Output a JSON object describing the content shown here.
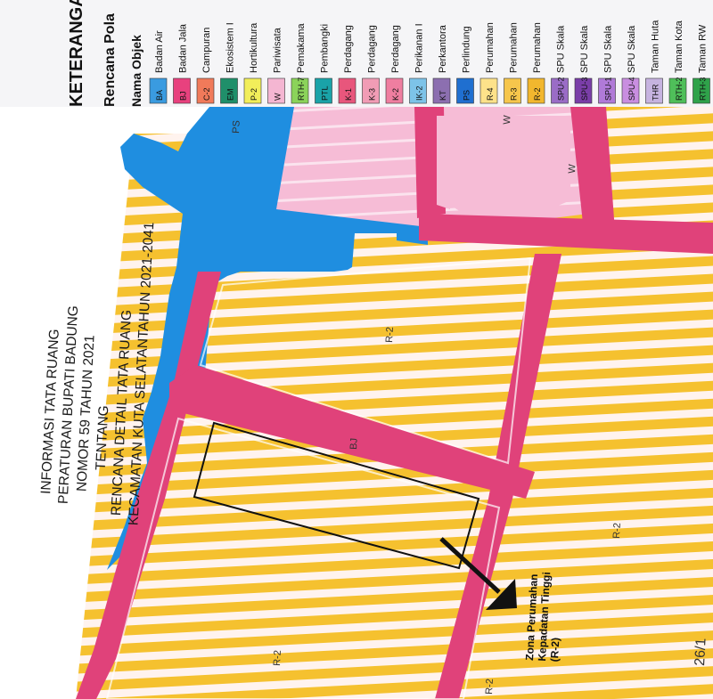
{
  "title_block": {
    "lines": [
      "INFORMASI TATA RUANG",
      "PERATURAN BUPATI BADUNG",
      "NOMOR 59 TAHUN 2021",
      "TENTANG",
      "RENCANA DETAIL TATA RUANG",
      "KECAMATAN KUTA SELATANTAHUN 2021-2041"
    ]
  },
  "legend": {
    "heading": "KETERANGA",
    "subheading": "Rencana Pola",
    "column_header": "Nama Objek",
    "items": [
      {
        "code": "BA",
        "label": "Badan Air",
        "color": "#3a9be0"
      },
      {
        "code": "BJ",
        "label": "Badan Jala",
        "color": "#e8417e"
      },
      {
        "code": "C-2",
        "label": "Campuran",
        "color": "#f07a5a"
      },
      {
        "code": "EM",
        "label": "Ekosistem I",
        "color": "#1f8f6a"
      },
      {
        "code": "P-2",
        "label": "Hortikultura",
        "color": "#f2ee5a"
      },
      {
        "code": "W",
        "label": "Pariwisata",
        "color": "#f4b6d2"
      },
      {
        "code": "RTH-7",
        "label": "Pemakama",
        "color": "#8bd35a"
      },
      {
        "code": "PTL",
        "label": "Pembangki",
        "color": "#1aa3a8"
      },
      {
        "code": "K-1",
        "label": "Perdagang",
        "color": "#e8567c"
      },
      {
        "code": "K-3",
        "label": "Perdagang",
        "color": "#f19cb5"
      },
      {
        "code": "K-2",
        "label": "Perdagang",
        "color": "#ef7ea0"
      },
      {
        "code": "IK-2",
        "label": "Perikanan I",
        "color": "#7dc3e8"
      },
      {
        "code": "KT",
        "label": "Perkantora",
        "color": "#8c6fb0"
      },
      {
        "code": "PS",
        "label": "Perlindung",
        "color": "#1f6fd0"
      },
      {
        "code": "R-4",
        "label": "Perumahan",
        "color": "#fde28a"
      },
      {
        "code": "R-3",
        "label": "Perumahan",
        "color": "#f6c64c"
      },
      {
        "code": "R-2",
        "label": "Perumahan",
        "color": "#f2b72e"
      },
      {
        "code": "SPU-2",
        "label": "SPU Skala",
        "color": "#9a6cc6"
      },
      {
        "code": "SPU-3",
        "label": "SPU Skala",
        "color": "#7a3ea8"
      },
      {
        "code": "SPU-1",
        "label": "SPU Skala",
        "color": "#b07ad8"
      },
      {
        "code": "SPU-4",
        "label": "SPU Skala",
        "color": "#c98ee0"
      },
      {
        "code": "THR",
        "label": "Taman Huta",
        "color": "#c6b3e0"
      },
      {
        "code": "RTH-2",
        "label": "Taman Kota",
        "color": "#4fbf5a"
      },
      {
        "code": "RTH-3",
        "label": "Taman RW",
        "color": "#2fa24a"
      }
    ]
  },
  "map_labels": {
    "ps": "PS",
    "w1": "W",
    "w2": "W",
    "r2_top": "R-2",
    "bj": "BJ",
    "r2_mid": "R-2",
    "r2_bottom_left": "R-2",
    "r2_bottom": "R-2"
  },
  "annotation": {
    "lines": [
      "Zona Perumahan",
      "Kepadatan Tinggi",
      "(R-2)"
    ]
  },
  "handwriting": {
    "text": "26/1"
  },
  "colors": {
    "water": "#1f8ee0",
    "road": "#e0427a",
    "pariwisata": "#f4b6d2",
    "residential_yellow": "#f5c12f",
    "residential_stripe": "#fff6f2",
    "legend_bg": "#f4f4f6"
  }
}
